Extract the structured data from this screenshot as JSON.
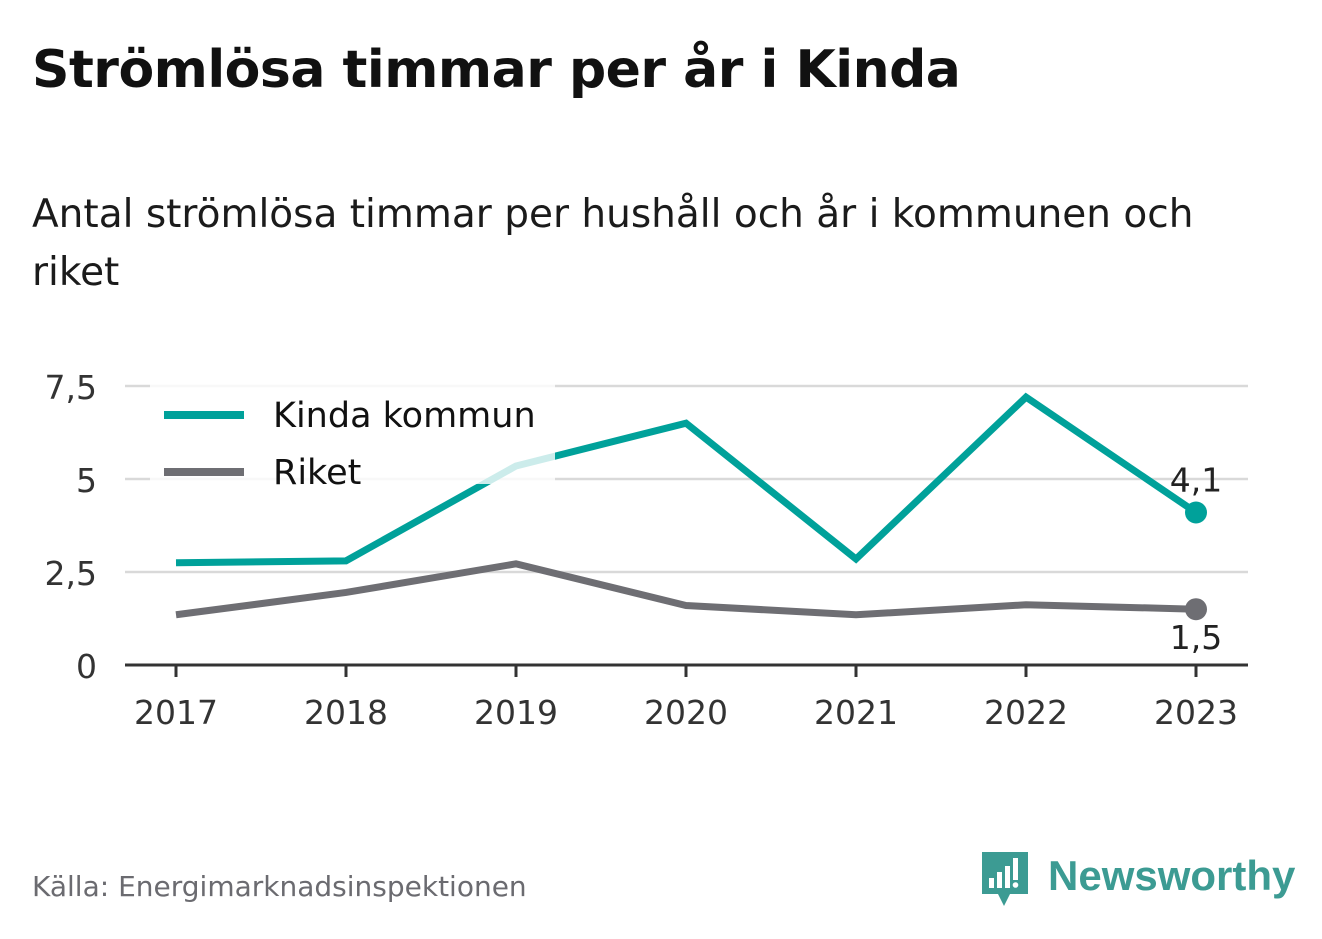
{
  "title": "Strömlösa timmar per år i Kinda",
  "subtitle": "Antal strömlösa timmar per hushåll och år i kommunen och riket",
  "source": "Källa: Energimarknadsinspektionen",
  "logo": {
    "text": "Newsworthy",
    "icon": "newsworthy-bar-chart-icon"
  },
  "colors": {
    "kinda": "#00a19a",
    "riket": "#6e6e73",
    "grid": "#d9d9d9",
    "axis": "#333333"
  },
  "chart_data": {
    "type": "line",
    "x": [
      "2017",
      "2018",
      "2019",
      "2020",
      "2021",
      "2022",
      "2023"
    ],
    "ylim": [
      0,
      7.5
    ],
    "yticks": [
      0,
      2.5,
      5,
      7.5
    ],
    "ytick_labels": [
      "0",
      "2,5",
      "5",
      "7,5"
    ],
    "grid": true,
    "legend_position": "top-left",
    "series": [
      {
        "name": "Kinda kommun",
        "values": [
          2.75,
          2.8,
          5.35,
          6.5,
          2.85,
          7.2,
          4.1
        ],
        "end_label": "4,1"
      },
      {
        "name": "Riket",
        "values": [
          1.35,
          1.95,
          2.72,
          1.6,
          1.35,
          1.62,
          1.5
        ],
        "end_label": "1,5"
      }
    ]
  }
}
